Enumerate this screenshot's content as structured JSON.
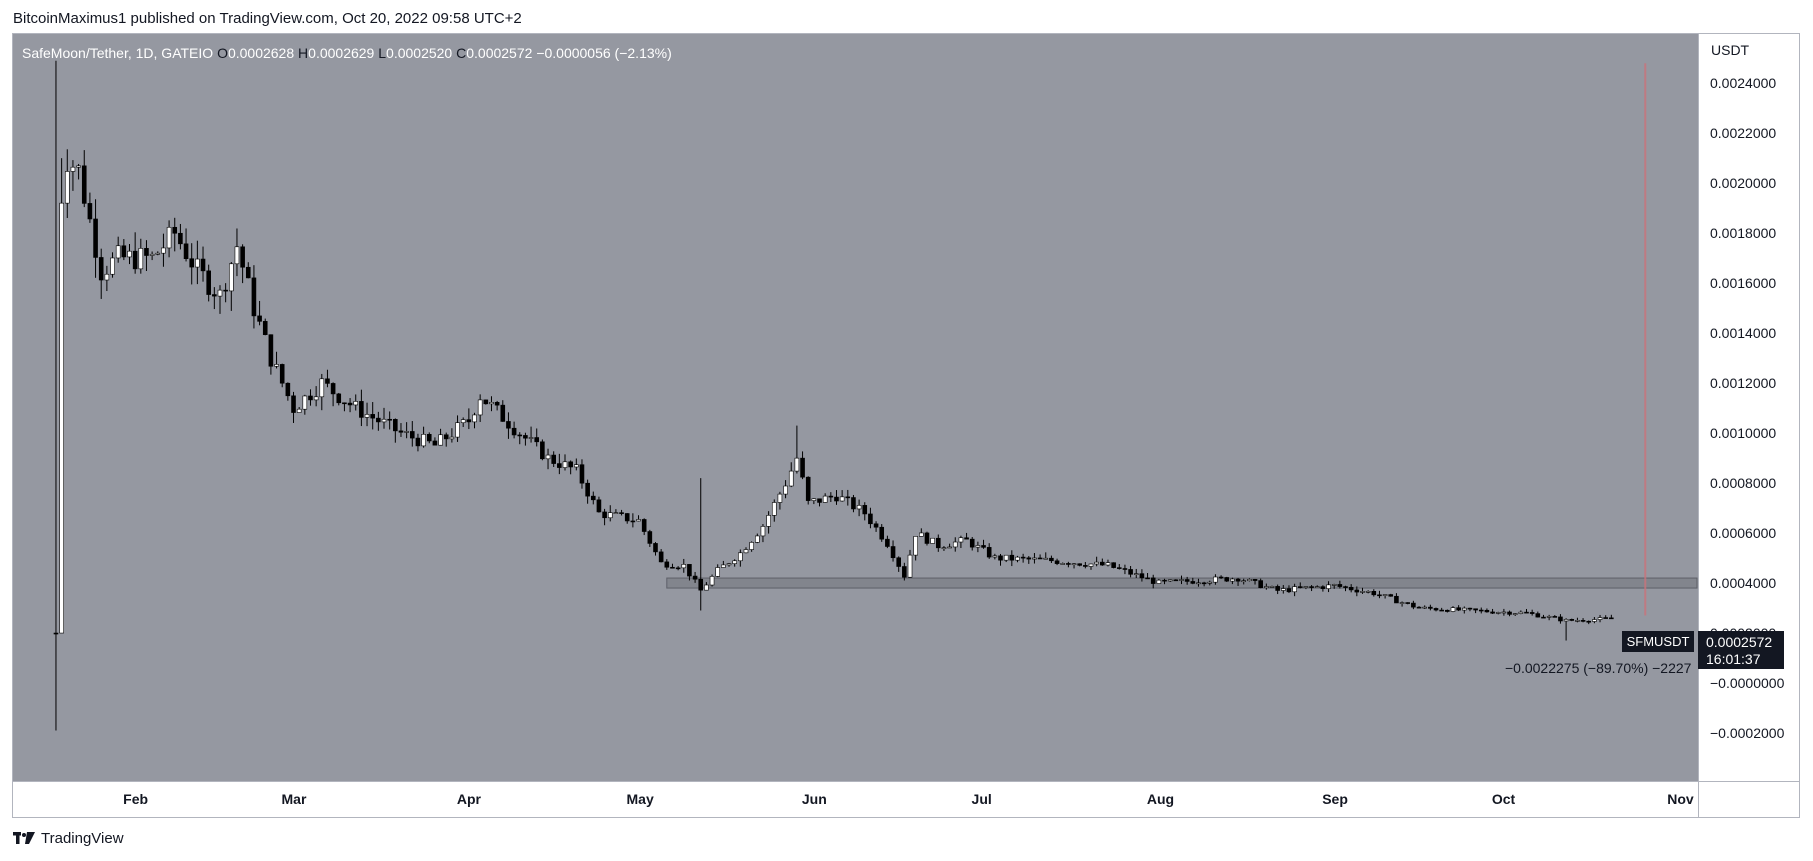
{
  "publisher_line": "BitcoinMaximus1 published on TradingView.com, Oct 20, 2022 09:58 UTC+2",
  "footer_brand": "TradingView",
  "legend": {
    "symbol": "SafeMoon/Tether, 1D, GATEIO",
    "o_label": "O",
    "o_value": "0.0002628",
    "h_label": "H",
    "h_value": "0.0002629",
    "l_label": "L",
    "l_value": "0.0002520",
    "c_label": "C",
    "c_value": "0.0002572",
    "change": "−0.0000056 (−2.13%)"
  },
  "price_scale": {
    "currency": "USDT",
    "ticks": [
      "0.0024000",
      "0.0022000",
      "0.0020000",
      "0.0018000",
      "0.0016000",
      "0.0014000",
      "0.0012000",
      "0.0010000",
      "0.0008000",
      "0.0006000",
      "0.0004000",
      "0.0002000",
      "−0.0000000",
      "−0.0002000"
    ]
  },
  "symbol_badge": "SFMUSDT",
  "last_price": "0.0002572",
  "countdown": "16:01:37",
  "measure_label": "−0.0022275 (−89.70%) −2227",
  "colors": {
    "background": "#9598a1",
    "candle_up": "#ffffff",
    "candle_down": "#000000",
    "support_zone": "#7a7d84",
    "projection_line": "#c9737a"
  },
  "chart_data": {
    "type": "candlestick",
    "title": "SafeMoon/Tether, 1D, GATEIO",
    "ylabel": "USDT",
    "ylim": [
      -0.00029,
      0.00255
    ],
    "x_ticks": [
      "Feb",
      "Mar",
      "Apr",
      "May",
      "Jun",
      "Jul",
      "Aug",
      "Sep",
      "Oct",
      "Nov"
    ],
    "grid": false,
    "support_zone": [
      0.00038,
      0.00042
    ],
    "series": [
      {
        "x": "2022-01-18",
        "v": 0.0002
      },
      {
        "x": "2022-01-19",
        "v": 0.00195
      },
      {
        "x": "2022-01-20",
        "v": 0.0021
      },
      {
        "x": "2022-01-22",
        "v": 0.00205
      },
      {
        "x": "2022-01-26",
        "v": 0.00165
      },
      {
        "x": "2022-01-29",
        "v": 0.0017
      },
      {
        "x": "2022-02-04",
        "v": 0.0017
      },
      {
        "x": "2022-02-08",
        "v": 0.0018
      },
      {
        "x": "2022-02-12",
        "v": 0.00165
      },
      {
        "x": "2022-02-16",
        "v": 0.00155
      },
      {
        "x": "2022-02-19",
        "v": 0.00175
      },
      {
        "x": "2022-02-22",
        "v": 0.0015
      },
      {
        "x": "2022-02-25",
        "v": 0.0013
      },
      {
        "x": "2022-03-01",
        "v": 0.0011
      },
      {
        "x": "2022-03-06",
        "v": 0.0012
      },
      {
        "x": "2022-03-12",
        "v": 0.0011
      },
      {
        "x": "2022-03-20",
        "v": 0.001
      },
      {
        "x": "2022-03-26",
        "v": 0.00095
      },
      {
        "x": "2022-04-01",
        "v": 0.00105
      },
      {
        "x": "2022-04-03",
        "v": 0.00115
      },
      {
        "x": "2022-04-10",
        "v": 0.001
      },
      {
        "x": "2022-04-15",
        "v": 0.0009
      },
      {
        "x": "2022-04-20",
        "v": 0.00085
      },
      {
        "x": "2022-04-24",
        "v": 0.00068
      },
      {
        "x": "2022-05-01",
        "v": 0.00065
      },
      {
        "x": "2022-05-05",
        "v": 0.00048
      },
      {
        "x": "2022-05-09",
        "v": 0.00047
      },
      {
        "x": "2022-05-12",
        "v": 0.00037
      },
      {
        "x": "2022-05-15",
        "v": 0.00045
      },
      {
        "x": "2022-05-19",
        "v": 0.00052
      },
      {
        "x": "2022-05-23",
        "v": 0.00063
      },
      {
        "x": "2022-05-27",
        "v": 0.0008
      },
      {
        "x": "2022-05-29",
        "v": 0.0009
      },
      {
        "x": "2022-05-31",
        "v": 0.00072
      },
      {
        "x": "2022-06-05",
        "v": 0.00075
      },
      {
        "x": "2022-06-10",
        "v": 0.00068
      },
      {
        "x": "2022-06-14",
        "v": 0.00056
      },
      {
        "x": "2022-06-17",
        "v": 0.00043
      },
      {
        "x": "2022-06-19",
        "v": 0.0006
      },
      {
        "x": "2022-06-23",
        "v": 0.00055
      },
      {
        "x": "2022-06-28",
        "v": 0.00057
      },
      {
        "x": "2022-07-03",
        "v": 0.0005
      },
      {
        "x": "2022-07-13",
        "v": 0.00049
      },
      {
        "x": "2022-07-23",
        "v": 0.00047
      },
      {
        "x": "2022-08-01",
        "v": 0.0004
      },
      {
        "x": "2022-08-15",
        "v": 0.00042
      },
      {
        "x": "2022-08-22",
        "v": 0.00037
      },
      {
        "x": "2022-09-01",
        "v": 0.00039
      },
      {
        "x": "2022-09-08",
        "v": 0.00036
      },
      {
        "x": "2022-09-16",
        "v": 0.0003
      },
      {
        "x": "2022-09-25",
        "v": 0.00029
      },
      {
        "x": "2022-10-05",
        "v": 0.00028
      },
      {
        "x": "2022-10-12",
        "v": 0.00025
      },
      {
        "x": "2022-10-20",
        "v": 0.000257
      }
    ]
  }
}
